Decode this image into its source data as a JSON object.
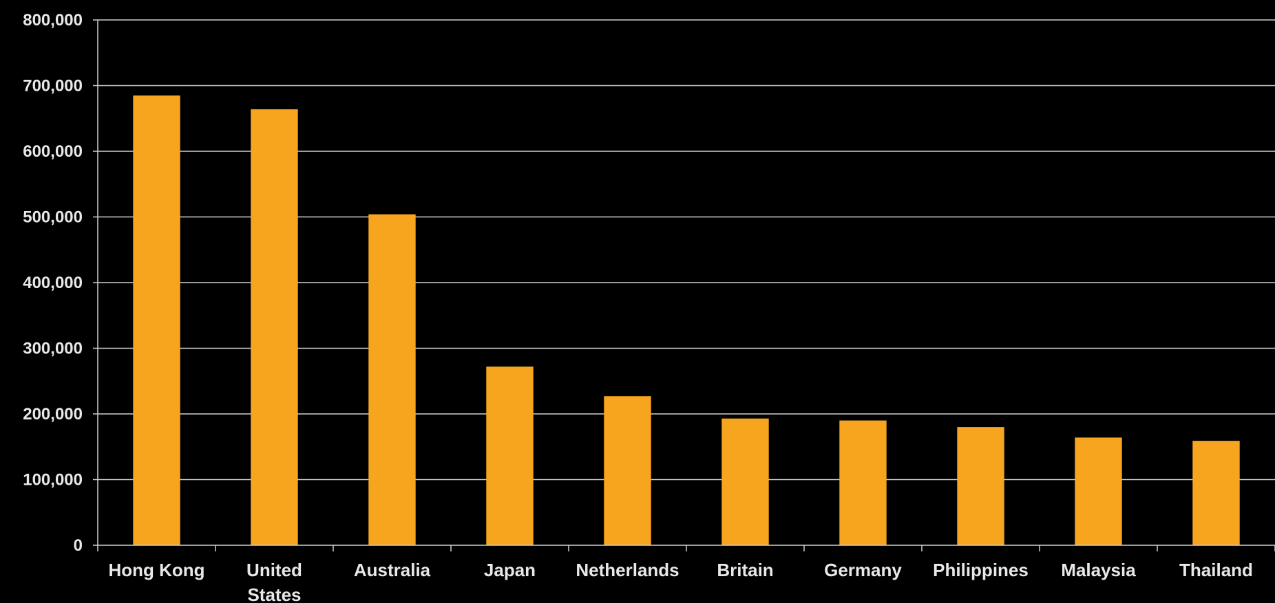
{
  "chart_data": {
    "type": "bar",
    "title": "",
    "xlabel": "",
    "ylabel": "",
    "categories": [
      "Hong Kong",
      "United States",
      "Australia",
      "Japan",
      "Netherlands",
      "Britain",
      "Germany",
      "Philippines",
      "Malaysia",
      "Thailand"
    ],
    "values": [
      685000,
      664000,
      504000,
      272000,
      227000,
      193000,
      190000,
      180000,
      164000,
      159000
    ],
    "ylim": [
      0,
      800000
    ],
    "yticks": [
      0,
      100000,
      200000,
      300000,
      400000,
      500000,
      600000,
      700000,
      800000
    ],
    "ytick_labels": [
      "0",
      "100,000",
      "200,000",
      "300,000",
      "400,000",
      "500,000",
      "600,000",
      "700,000",
      "800,000"
    ],
    "grid": true,
    "legend": "none",
    "colors": {
      "bar": "#F7A51F",
      "background": "#000000",
      "grid": "#cfcfcf",
      "text": "#e8e8e8"
    }
  }
}
